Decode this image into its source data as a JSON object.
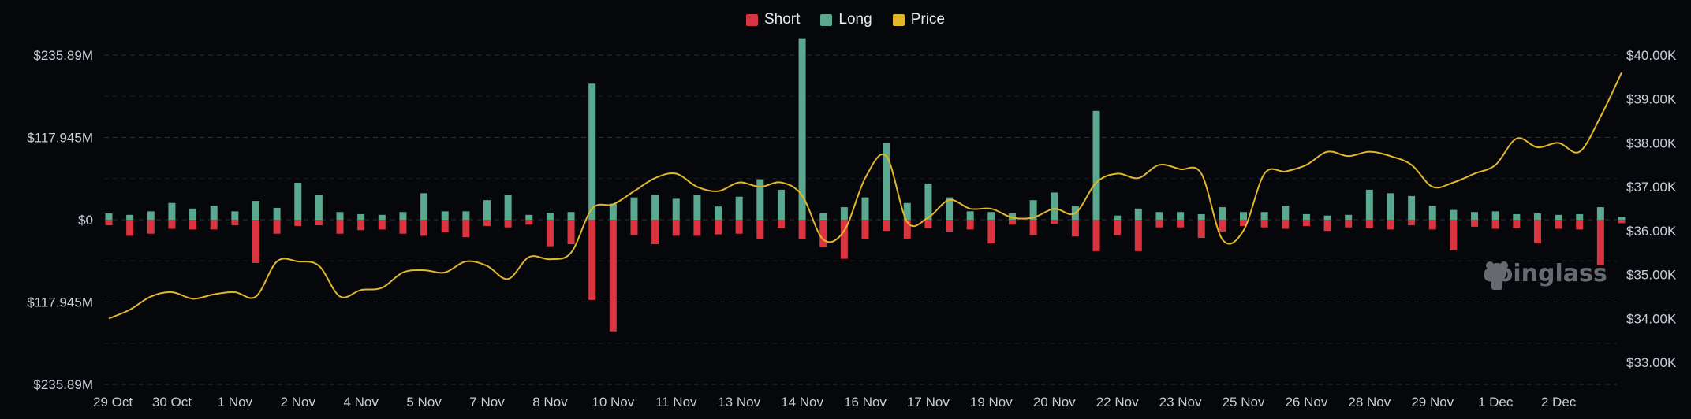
{
  "legend": {
    "short": "Short",
    "long": "Long",
    "price": "Price"
  },
  "watermark": "coinglass",
  "colors": {
    "short": "#d9343f",
    "long": "#5aa88d",
    "price": "#e2b72a",
    "grid": "#2b2f37",
    "text": "#c9ced6",
    "background": "#05070b"
  },
  "chart_data": {
    "type": "bar",
    "title": "",
    "xlabel": "",
    "ylabel": "",
    "grid": true,
    "legend_position": "top-center",
    "ylim": [
      -235890000,
      235890000
    ],
    "y2lim": [
      32500000,
      40000000
    ],
    "y_ticks": [
      "$235.89M",
      "$117.945M",
      "$0",
      "$117.945M",
      "$235.89M"
    ],
    "y2_ticks": [
      "$40.00K",
      "$39.00K",
      "$38.00K",
      "$37.00K",
      "$36.00K",
      "$35.00K",
      "$34.00K",
      "$33.00K"
    ],
    "x_tick_labels": [
      "29 Oct",
      "30 Oct",
      "1 Nov",
      "2 Nov",
      "4 Nov",
      "5 Nov",
      "7 Nov",
      "8 Nov",
      "10 Nov",
      "11 Nov",
      "13 Nov",
      "14 Nov",
      "16 Nov",
      "17 Nov",
      "19 Nov",
      "20 Nov",
      "22 Nov",
      "23 Nov",
      "25 Nov",
      "26 Nov",
      "28 Nov",
      "29 Nov",
      "1 Dec",
      "2 Dec"
    ],
    "tick_every": 3,
    "series": [
      {
        "name": "Long",
        "values": [
          9,
          7,
          12,
          24,
          16,
          20,
          12,
          27,
          17,
          53,
          36,
          11,
          8,
          7,
          11,
          38,
          12,
          12,
          28,
          36,
          7,
          10,
          11,
          195,
          23,
          32,
          36,
          30,
          36,
          19,
          33,
          58,
          43,
          260,
          9,
          18,
          32,
          110,
          24,
          52,
          32,
          12,
          11,
          9,
          28,
          39,
          20,
          156,
          6,
          16,
          11,
          11,
          8,
          18,
          11,
          11,
          20,
          8,
          6,
          7,
          43,
          38,
          34,
          20,
          14,
          11,
          12,
          8,
          9,
          7,
          8,
          18,
          4
        ]
      },
      {
        "name": "Short",
        "values": [
          -8,
          -23,
          -20,
          -13,
          -14,
          -14,
          -8,
          -62,
          -20,
          -9,
          -8,
          -20,
          -15,
          -14,
          -20,
          -23,
          -18,
          -25,
          -9,
          -11,
          -7,
          -38,
          -35,
          -115,
          -160,
          -22,
          -35,
          -23,
          -23,
          -21,
          -20,
          -28,
          -12,
          -28,
          -39,
          -56,
          -28,
          -16,
          -27,
          -12,
          -17,
          -14,
          -34,
          -7,
          -22,
          -6,
          -24,
          -45,
          -22,
          -45,
          -11,
          -11,
          -26,
          -17,
          -9,
          -11,
          -13,
          -9,
          -16,
          -11,
          -12,
          -14,
          -8,
          -14,
          -44,
          -10,
          -13,
          -12,
          -34,
          -13,
          -14,
          -65,
          -5
        ]
      },
      {
        "name": "Price",
        "values": [
          34.0,
          34.2,
          34.5,
          34.6,
          34.45,
          34.55,
          34.6,
          34.5,
          35.3,
          35.3,
          35.2,
          34.5,
          34.65,
          34.7,
          35.05,
          35.1,
          35.05,
          35.3,
          35.2,
          34.9,
          35.4,
          35.35,
          35.5,
          36.5,
          36.6,
          36.9,
          37.2,
          37.3,
          37.0,
          36.9,
          37.1,
          37.0,
          37.1,
          36.8,
          35.8,
          36.0,
          37.2,
          37.7,
          36.2,
          36.3,
          36.7,
          36.5,
          36.5,
          36.3,
          36.3,
          36.5,
          36.4,
          37.1,
          37.3,
          37.2,
          37.5,
          37.4,
          37.3,
          35.8,
          36.0,
          37.3,
          37.35,
          37.5,
          37.8,
          37.7,
          37.8,
          37.7,
          37.5,
          37.0,
          37.1,
          37.3,
          37.5,
          38.1,
          37.9,
          38.0,
          37.8,
          38.6,
          39.6
        ]
      }
    ]
  }
}
